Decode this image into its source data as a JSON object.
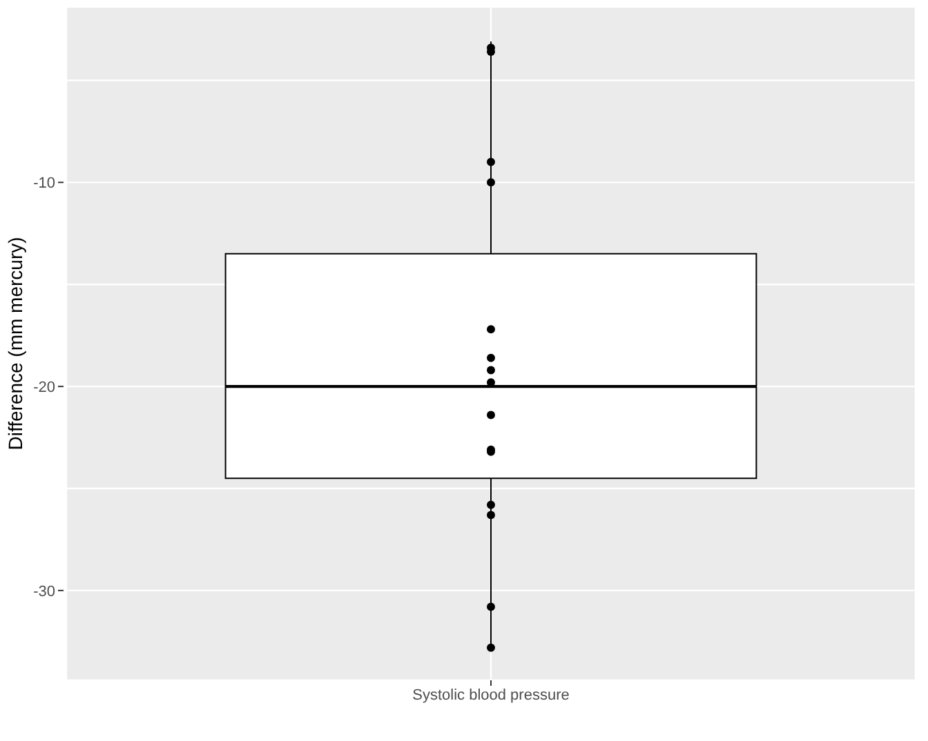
{
  "chart_data": {
    "type": "box",
    "categories": [
      "Systolic blood pressure"
    ],
    "ylabel": "Difference (mm mercury)",
    "boxes": [
      {
        "low": -32.8,
        "q1": -24.5,
        "median": -20,
        "q3": -13.5,
        "high": -3.1
      }
    ],
    "series": [
      {
        "type": "scatter",
        "color": "#000000",
        "x": [
          "Systolic blood pressure",
          "Systolic blood pressure",
          "Systolic blood pressure",
          "Systolic blood pressure",
          "Systolic blood pressure",
          "Systolic blood pressure",
          "Systolic blood pressure",
          "Systolic blood pressure",
          "Systolic blood pressure",
          "Systolic blood pressure",
          "Systolic blood pressure",
          "Systolic blood pressure",
          "Systolic blood pressure",
          "Systolic blood pressure",
          "Systolic blood pressure"
        ],
        "values": [
          -3.4,
          -3.6,
          -9.0,
          -10.0,
          -17.2,
          -18.6,
          -19.2,
          -19.8,
          -21.4,
          -23.1,
          -23.2,
          -25.8,
          -26.3,
          -30.8,
          -32.8
        ]
      }
    ],
    "ylim": [
      -34.4,
      -1.4
    ],
    "yticks": [
      {
        "value": -30,
        "label": "-30"
      },
      {
        "value": -25,
        "label": null
      },
      {
        "value": -20,
        "label": "-20"
      },
      {
        "value": -15,
        "label": null
      },
      {
        "value": -10,
        "label": "-10"
      },
      {
        "value": -5,
        "label": null
      }
    ],
    "grid": true,
    "marker": "circle"
  }
}
